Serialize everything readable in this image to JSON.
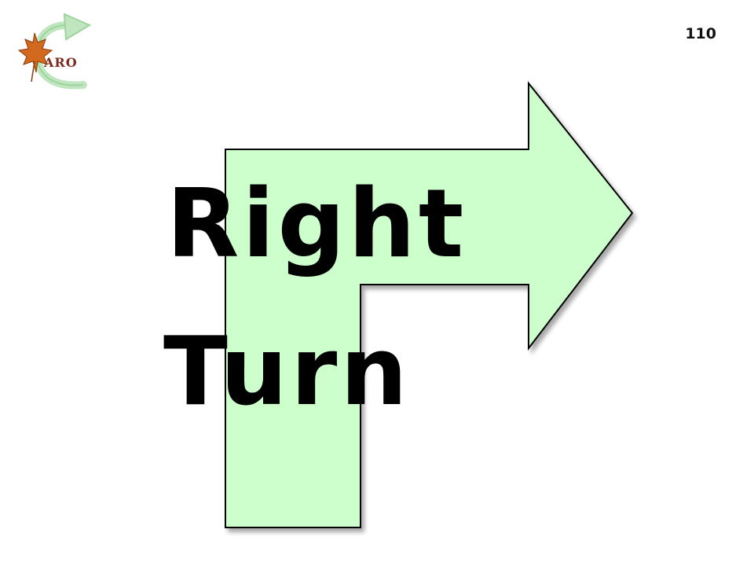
{
  "slide": {
    "page_number": "110",
    "logo": {
      "text": "ARO",
      "icon": "maple-leaf-cycle-arrow-logo"
    },
    "arrow": {
      "icon": "right-turn-arrow",
      "fill": "#ccffcc",
      "stroke": "#000000"
    },
    "title_lines": [
      "Right",
      "Turn"
    ]
  }
}
